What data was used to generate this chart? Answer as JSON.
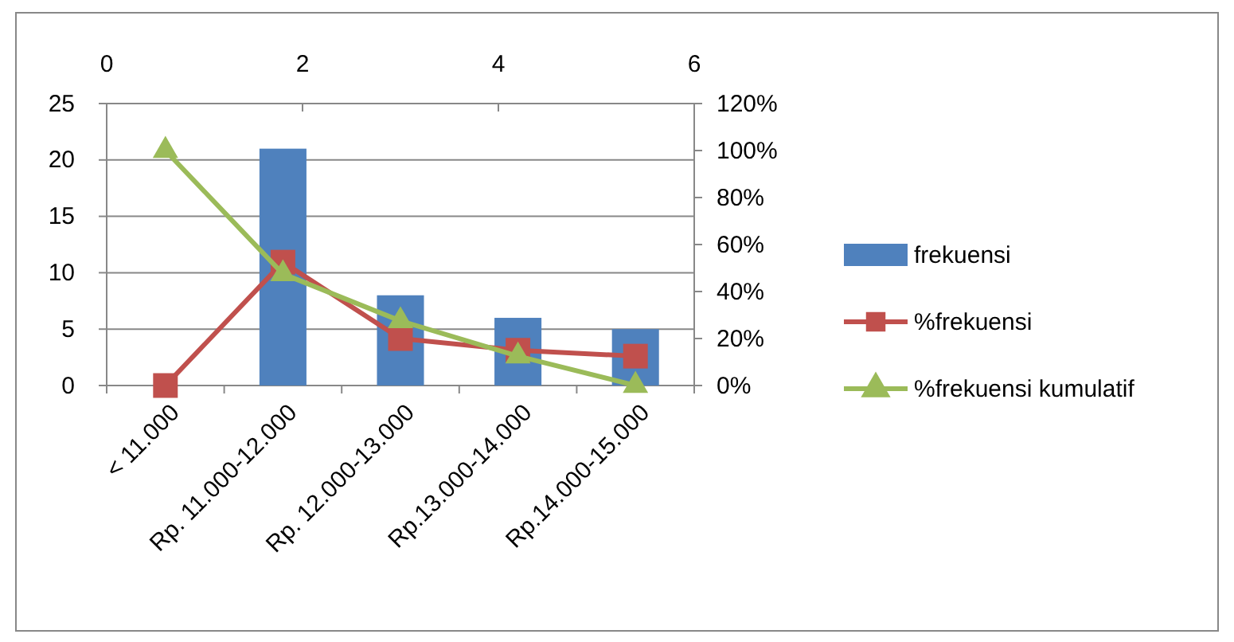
{
  "chart_data": {
    "type": "bar",
    "categories": [
      "< 11.000",
      "Rp. 11.000-12.000",
      "Rp. 12.000-13.000",
      "Rp.13.000-14.000",
      "Rp.14.000-15.000"
    ],
    "series": [
      {
        "name": "frekuensi",
        "color": "#4f81bd",
        "values": [
          0,
          21,
          8,
          6,
          5
        ]
      },
      {
        "name": "%frekuensi",
        "type": "line",
        "axis": "y2",
        "marker": "square",
        "color": "#c0504d",
        "values": [
          0,
          52.5,
          20,
          15,
          12.5
        ]
      },
      {
        "name": "%frekuensi kumulatif",
        "type": "line",
        "axis": "y2",
        "marker": "triangle",
        "color": "#9bbb59",
        "values": [
          100,
          47.5,
          27.5,
          12.5,
          0
        ]
      }
    ],
    "ylim": [
      0,
      25
    ],
    "yticks": [
      0,
      5,
      10,
      15,
      20,
      25
    ],
    "y2lim": [
      0,
      120
    ],
    "y2ticks": [
      {
        "value": 0,
        "label": "0%"
      },
      {
        "value": 20,
        "label": "20%"
      },
      {
        "value": 40,
        "label": "40%"
      },
      {
        "value": 60,
        "label": "60%"
      },
      {
        "value": 80,
        "label": "80%"
      },
      {
        "value": 100,
        "label": "100%"
      },
      {
        "value": 120,
        "label": "120%"
      }
    ],
    "x2lim": [
      0,
      6
    ],
    "x2ticks": [
      0,
      2,
      4,
      6
    ],
    "grid": "y",
    "legend": "right"
  }
}
